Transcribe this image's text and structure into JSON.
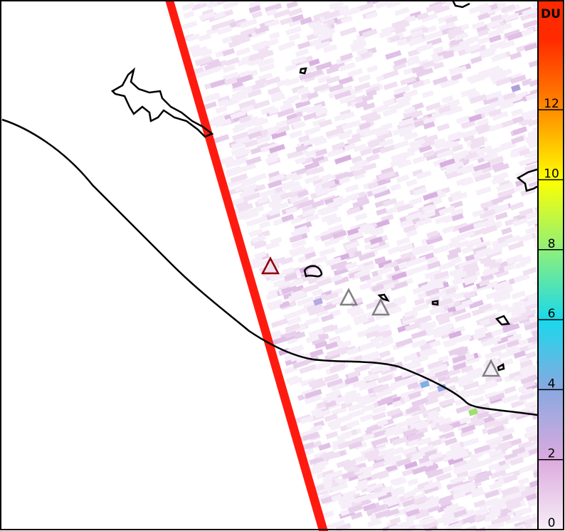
{
  "colorbar": {
    "unit": "DU",
    "ticks": [
      "0",
      "2",
      "4",
      "6",
      "8",
      "10",
      "12"
    ],
    "range": [
      0,
      14
    ],
    "colors": [
      "#f7eef7",
      "#dcaadf",
      "#8aa8e0",
      "#19d8ec",
      "#8ef07a",
      "#ffff00",
      "#ff8c00",
      "#ff2a00"
    ]
  },
  "overlays": {
    "swath_color": "#ff1a10",
    "coastline_color": "#000000",
    "volcano_active_color": "#8b0000",
    "volcano_other_color": "#808080"
  }
}
